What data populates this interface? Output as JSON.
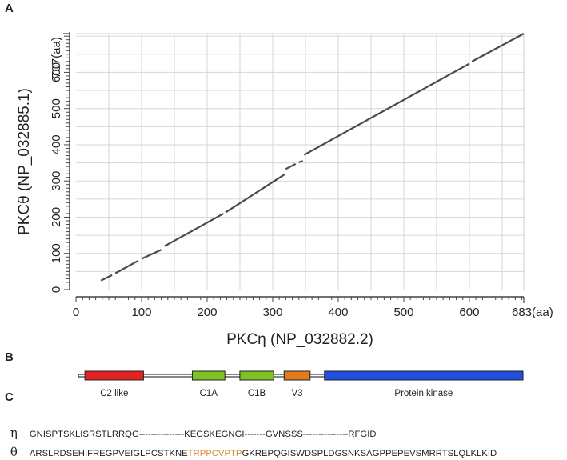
{
  "panels": {
    "a": "A",
    "b": "B",
    "c": "C"
  },
  "chart_data": {
    "type": "line",
    "title": "",
    "xlabel": "PKCη (NP_032882.2)",
    "ylabel": "PKCθ (NP_032885.1)",
    "xlim": [
      0,
      683
    ],
    "ylim": [
      0,
      707
    ],
    "x_ticks": [
      0,
      100,
      200,
      300,
      400,
      500,
      600
    ],
    "y_ticks": [
      0,
      100,
      200,
      300,
      400,
      500,
      600
    ],
    "x_end_label": "683(aa)",
    "y_end_label": "707(aa)",
    "grid": true,
    "series": [
      {
        "segments": [
          {
            "x": [
              38,
              55
            ],
            "y": [
              25,
              40
            ]
          },
          {
            "x": [
              60,
              95
            ],
            "y": [
              45,
              80
            ]
          },
          {
            "x": [
              100,
              130
            ],
            "y": [
              85,
              110
            ]
          },
          {
            "x": [
              135,
              225
            ],
            "y": [
              120,
              210
            ]
          },
          {
            "x": [
              228,
              318
            ],
            "y": [
              213,
              318
            ]
          },
          {
            "x": [
              320,
              335
            ],
            "y": [
              333,
              347
            ]
          },
          {
            "x": [
              340,
              346
            ],
            "y": [
              352,
              355
            ]
          },
          {
            "x": [
              348,
              600
            ],
            "y": [
              372,
              624
            ]
          },
          {
            "x": [
              604,
              683
            ],
            "y": [
              630,
              707
            ]
          }
        ]
      }
    ]
  },
  "domains": {
    "length": 683,
    "items": [
      {
        "label": "C2 like",
        "start": 10,
        "end": 100,
        "color": "#e52222"
      },
      {
        "label": "C1A",
        "start": 175,
        "end": 225,
        "color": "#7ec225"
      },
      {
        "label": "C1B",
        "start": 248,
        "end": 300,
        "color": "#7ec225"
      },
      {
        "label": "V3",
        "start": 316,
        "end": 356,
        "color": "#e07b1c"
      },
      {
        "label": "Protein kinase",
        "start": 378,
        "end": 683,
        "color": "#1f4fdc"
      }
    ]
  },
  "alignment": {
    "eta_label": "η",
    "theta_label": "θ",
    "eta_seq": "GNISPTSKLISRSTLRRQG---------------KEGSKEGNGI-------GVNSSS---------------RFGID",
    "theta_pre": "ARSLRDSEHIFREGPVEIGLPCSTKNE",
    "theta_highlight": "TRPPCVPTP",
    "theta_post": "GKREPQGISWDSPLDGSNKSAGPPEPEVSMRRTSLQLKLKID",
    "highlight_color": "#d98a2b"
  }
}
